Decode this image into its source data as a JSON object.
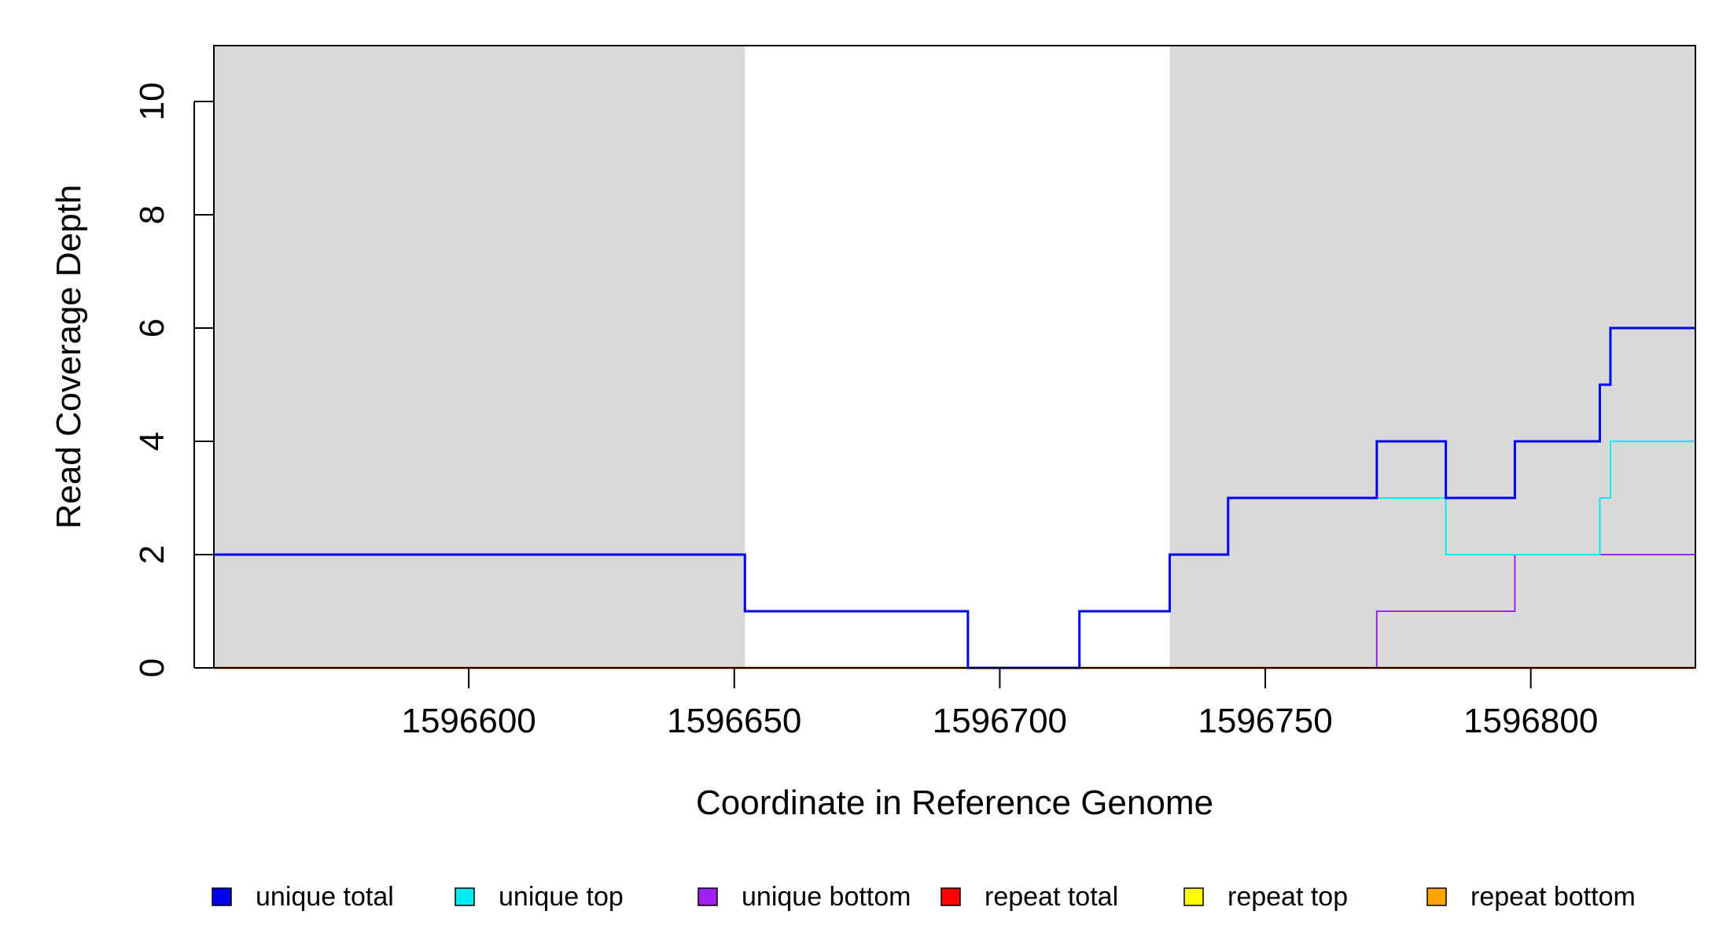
{
  "chart_data": {
    "type": "line",
    "xlabel": "Coordinate in Reference Genome",
    "ylabel": "Read Coverage Depth",
    "xlim": [
      1596552,
      1596831
    ],
    "ylim": [
      0,
      10
    ],
    "x_ticks": [
      1596600,
      1596650,
      1596700,
      1596750,
      1596800
    ],
    "x_tick_labels": [
      "1596600",
      "1596650",
      "1596700",
      "1596750",
      "1596800"
    ],
    "y_ticks": [
      0,
      2,
      4,
      6,
      8,
      10
    ],
    "y_tick_labels": [
      "0",
      "2",
      "4",
      "6",
      "8",
      "10"
    ],
    "grid": false,
    "legend_position": "bottom",
    "shaded_regions": [
      {
        "x0": 1596552,
        "x1": 1596652,
        "color": "#d9d9d9"
      },
      {
        "x0": 1596732,
        "x1": 1596831,
        "color": "#d9d9d9"
      }
    ],
    "series": [
      {
        "name": "unique total",
        "color": "#0000ee",
        "steps": [
          [
            1596552,
            2
          ],
          [
            1596652,
            1
          ],
          [
            1596694,
            0
          ],
          [
            1596715,
            1
          ],
          [
            1596732,
            2
          ],
          [
            1596743,
            3
          ],
          [
            1596771,
            4
          ],
          [
            1596784,
            3
          ],
          [
            1596797,
            4
          ],
          [
            1596813,
            5
          ],
          [
            1596815,
            6
          ],
          [
            1596831,
            6
          ]
        ]
      },
      {
        "name": "unique top",
        "color": "#00eeee",
        "steps": [
          [
            1596552,
            2
          ],
          [
            1596652,
            1
          ],
          [
            1596694,
            0
          ],
          [
            1596715,
            1
          ],
          [
            1596732,
            2
          ],
          [
            1596743,
            3
          ],
          [
            1596784,
            2
          ],
          [
            1596813,
            3
          ],
          [
            1596815,
            4
          ],
          [
            1596831,
            4
          ]
        ]
      },
      {
        "name": "unique bottom",
        "color": "#a020f0",
        "steps": [
          [
            1596552,
            0
          ],
          [
            1596771,
            1
          ],
          [
            1596797,
            2
          ],
          [
            1596831,
            2
          ]
        ]
      },
      {
        "name": "repeat total",
        "color": "#ff0000",
        "steps": [
          [
            1596552,
            0
          ],
          [
            1596831,
            0
          ]
        ]
      },
      {
        "name": "repeat top",
        "color": "#ffff00",
        "steps": [
          [
            1596552,
            0
          ],
          [
            1596831,
            0
          ]
        ]
      },
      {
        "name": "repeat bottom",
        "color": "#ffa500",
        "steps": [
          [
            1596552,
            0
          ],
          [
            1596831,
            0
          ]
        ]
      }
    ]
  },
  "legend": [
    {
      "label": "unique total",
      "color": "#0000ee"
    },
    {
      "label": "unique top",
      "color": "#00eeee"
    },
    {
      "label": "unique bottom",
      "color": "#a020f0"
    },
    {
      "label": "repeat total",
      "color": "#ff0000"
    },
    {
      "label": "repeat top",
      "color": "#ffff00"
    },
    {
      "label": "repeat bottom",
      "color": "#ffa500"
    }
  ]
}
